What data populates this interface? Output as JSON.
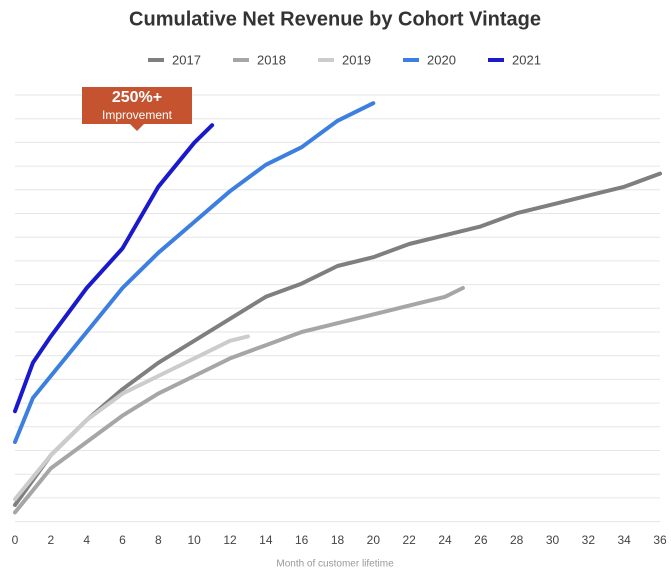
{
  "chart_data": {
    "type": "line",
    "title": "Cumulative Net Revenue by Cohort Vintage",
    "x_label": "Month of customer lifetime",
    "xlim": [
      0,
      36
    ],
    "xticks": [
      0,
      2,
      4,
      6,
      8,
      10,
      12,
      14,
      16,
      18,
      20,
      22,
      24,
      26,
      28,
      30,
      32,
      34,
      36
    ],
    "ylim": [
      0,
      100
    ],
    "grid": true,
    "legend": "top",
    "annotation": {
      "title": "250%+",
      "text": "Improvement"
    },
    "series": [
      {
        "name": "2017",
        "color": "#7f7f7f",
        "x": [
          0,
          2,
          4,
          6,
          8,
          10,
          12,
          14,
          16,
          18,
          20,
          22,
          24,
          26,
          28,
          30,
          32,
          34,
          36
        ],
        "values": [
          5.7,
          17,
          25,
          32,
          38,
          43,
          48,
          53,
          56,
          60,
          62,
          65,
          67,
          69,
          72,
          74,
          76,
          78,
          81
        ]
      },
      {
        "name": "2018",
        "color": "#a6a6a6",
        "x": [
          0,
          2,
          4,
          6,
          8,
          10,
          12,
          14,
          16,
          18,
          20,
          22,
          24,
          25
        ],
        "values": [
          4,
          14,
          20,
          26,
          31,
          35,
          39,
          42,
          45,
          47,
          49,
          51,
          53,
          55
        ]
      },
      {
        "name": "2019",
        "color": "#cccccc",
        "x": [
          0,
          2,
          4,
          6,
          8,
          10,
          12,
          13
        ],
        "values": [
          7,
          17,
          25,
          31,
          35,
          39,
          43,
          44
        ]
      },
      {
        "name": "2020",
        "color": "#3d7fe0",
        "x": [
          0,
          1,
          2,
          4,
          6,
          8,
          10,
          12,
          14,
          16,
          18,
          20
        ],
        "values": [
          20,
          30,
          35,
          45,
          55,
          63,
          70,
          77,
          83,
          87,
          93,
          97
        ]
      },
      {
        "name": "2021",
        "color": "#1a1acc",
        "x": [
          0,
          1,
          2,
          4,
          6,
          8,
          10,
          11
        ],
        "values": [
          27,
          38,
          44,
          55,
          64,
          78,
          88,
          92
        ]
      }
    ]
  }
}
